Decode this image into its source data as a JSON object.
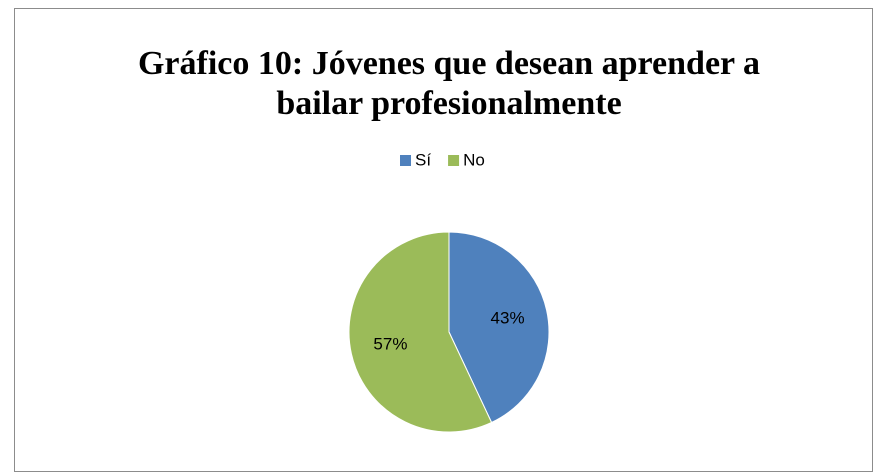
{
  "chart_data": {
    "type": "pie",
    "title": "Gráfico 10: Jóvenes que desean aprender a bailar profesionalmente",
    "categories": [
      "Sí",
      "No"
    ],
    "values": [
      43,
      57
    ],
    "value_labels": [
      "43%",
      "57%"
    ],
    "colors": [
      "#4f81bd",
      "#9bbb59"
    ],
    "legend": "top"
  }
}
